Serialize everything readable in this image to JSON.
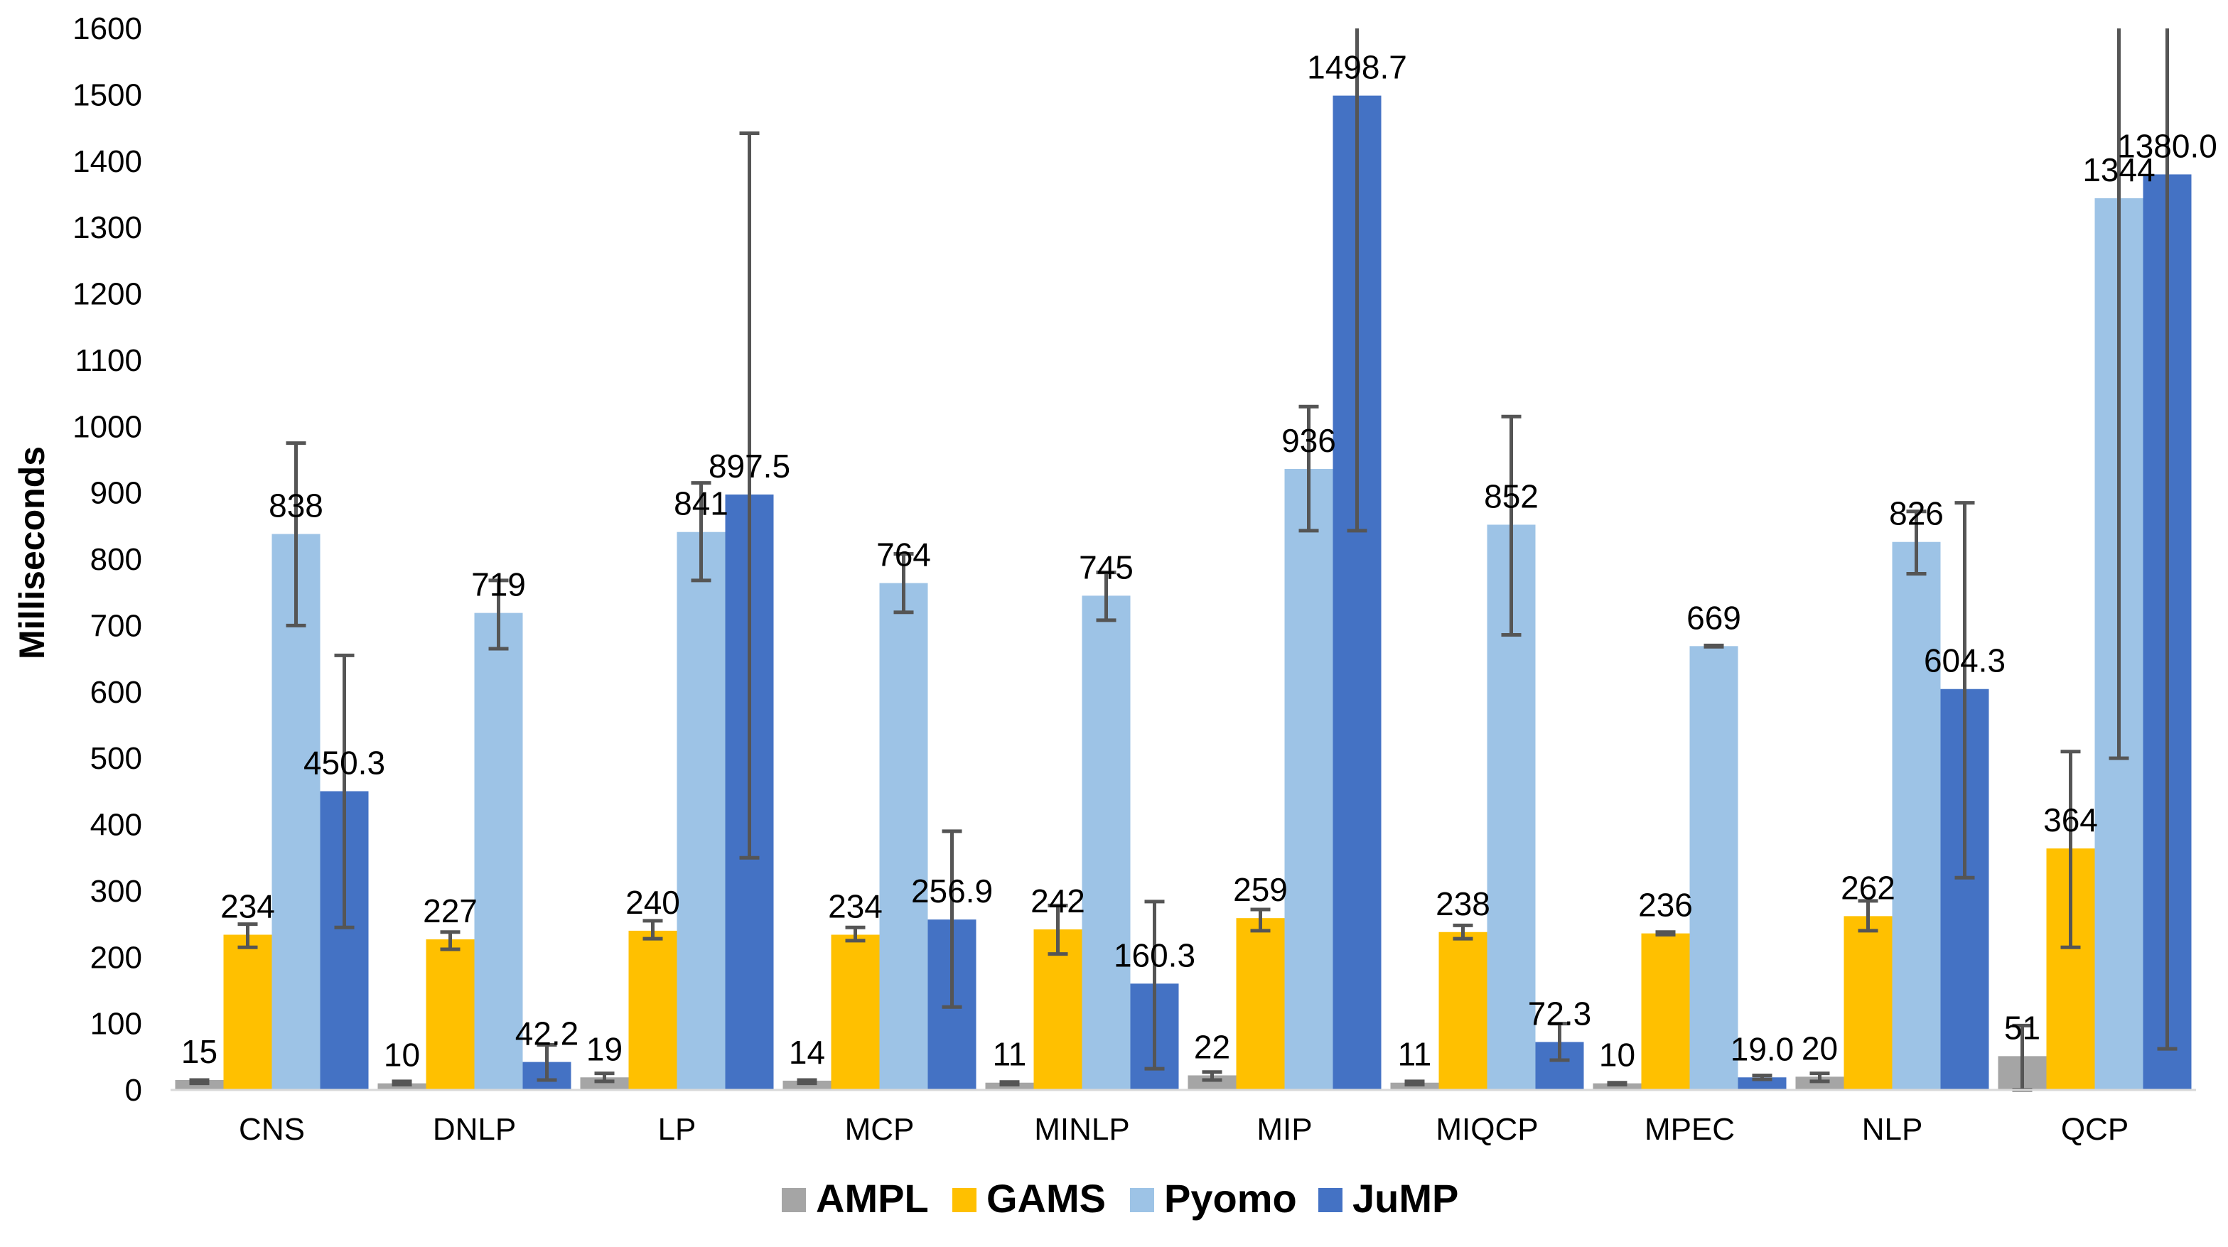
{
  "chart_data": {
    "type": "bar",
    "title": "",
    "xlabel": "",
    "ylabel": "Milliseconds",
    "ylim": [
      0,
      1600
    ],
    "yticks": [
      0,
      100,
      200,
      300,
      400,
      500,
      600,
      700,
      800,
      900,
      1000,
      1100,
      1200,
      1300,
      1400,
      1500,
      1600
    ],
    "grid": false,
    "legend_position": "bottom",
    "categories": [
      "CNS",
      "DNLP",
      "LP",
      "MCP",
      "MINLP",
      "MIP",
      "MIQCP",
      "MPEC",
      "NLP",
      "QCP"
    ],
    "series": [
      {
        "name": "AMPL",
        "color": "#a5a5a5",
        "values": [
          15,
          10,
          19,
          14,
          11,
          22,
          11,
          10,
          20,
          51
        ],
        "labels": [
          "15",
          "10",
          "19",
          "14",
          "11",
          "22",
          "11",
          "10",
          "20",
          "51"
        ],
        "err_low": [
          10,
          8,
          13,
          10,
          8,
          15,
          8,
          8,
          13,
          0
        ],
        "err_high": [
          15,
          13,
          25,
          15,
          12,
          27,
          13,
          11,
          25,
          97
        ]
      },
      {
        "name": "GAMS",
        "color": "#ffc000",
        "values": [
          234,
          227,
          240,
          234,
          242,
          259,
          238,
          236,
          262,
          364
        ],
        "labels": [
          "234",
          "227",
          "240",
          "234",
          "242",
          "259",
          "238",
          "236",
          "262",
          "364"
        ],
        "err_low": [
          215,
          212,
          228,
          225,
          205,
          240,
          228,
          234,
          240,
          215
        ],
        "err_high": [
          250,
          238,
          255,
          245,
          278,
          272,
          248,
          238,
          285,
          510
        ]
      },
      {
        "name": "Pyomo",
        "color": "#9dc3e6",
        "values": [
          838,
          719,
          841,
          764,
          745,
          936,
          852,
          669,
          826,
          1344
        ],
        "labels": [
          "838",
          "719",
          "841",
          "764",
          "745",
          "936",
          "852",
          "669",
          "826",
          "1344"
        ],
        "err_low": [
          700,
          665,
          768,
          720,
          708,
          843,
          686,
          668,
          778,
          500
        ],
        "err_high": [
          975,
          768,
          915,
          808,
          780,
          1030,
          1015,
          670,
          872,
          1600
        ]
      },
      {
        "name": "JuMP",
        "color": "#4472c4",
        "values": [
          450.3,
          42.2,
          897.5,
          256.9,
          160.3,
          1498.7,
          72.3,
          19.0,
          604.3,
          1380.0
        ],
        "labels": [
          "450.3",
          "42.2",
          "897.5",
          "256.9",
          "160.3",
          "1498.7",
          "72.3",
          "19.0",
          "604.3",
          "1380.0"
        ],
        "err_low": [
          245,
          15,
          350,
          125,
          32,
          843,
          45,
          16,
          320,
          62
        ],
        "err_high": [
          655,
          68,
          1442,
          390,
          284,
          1600,
          100,
          22,
          885,
          1600
        ]
      }
    ]
  }
}
